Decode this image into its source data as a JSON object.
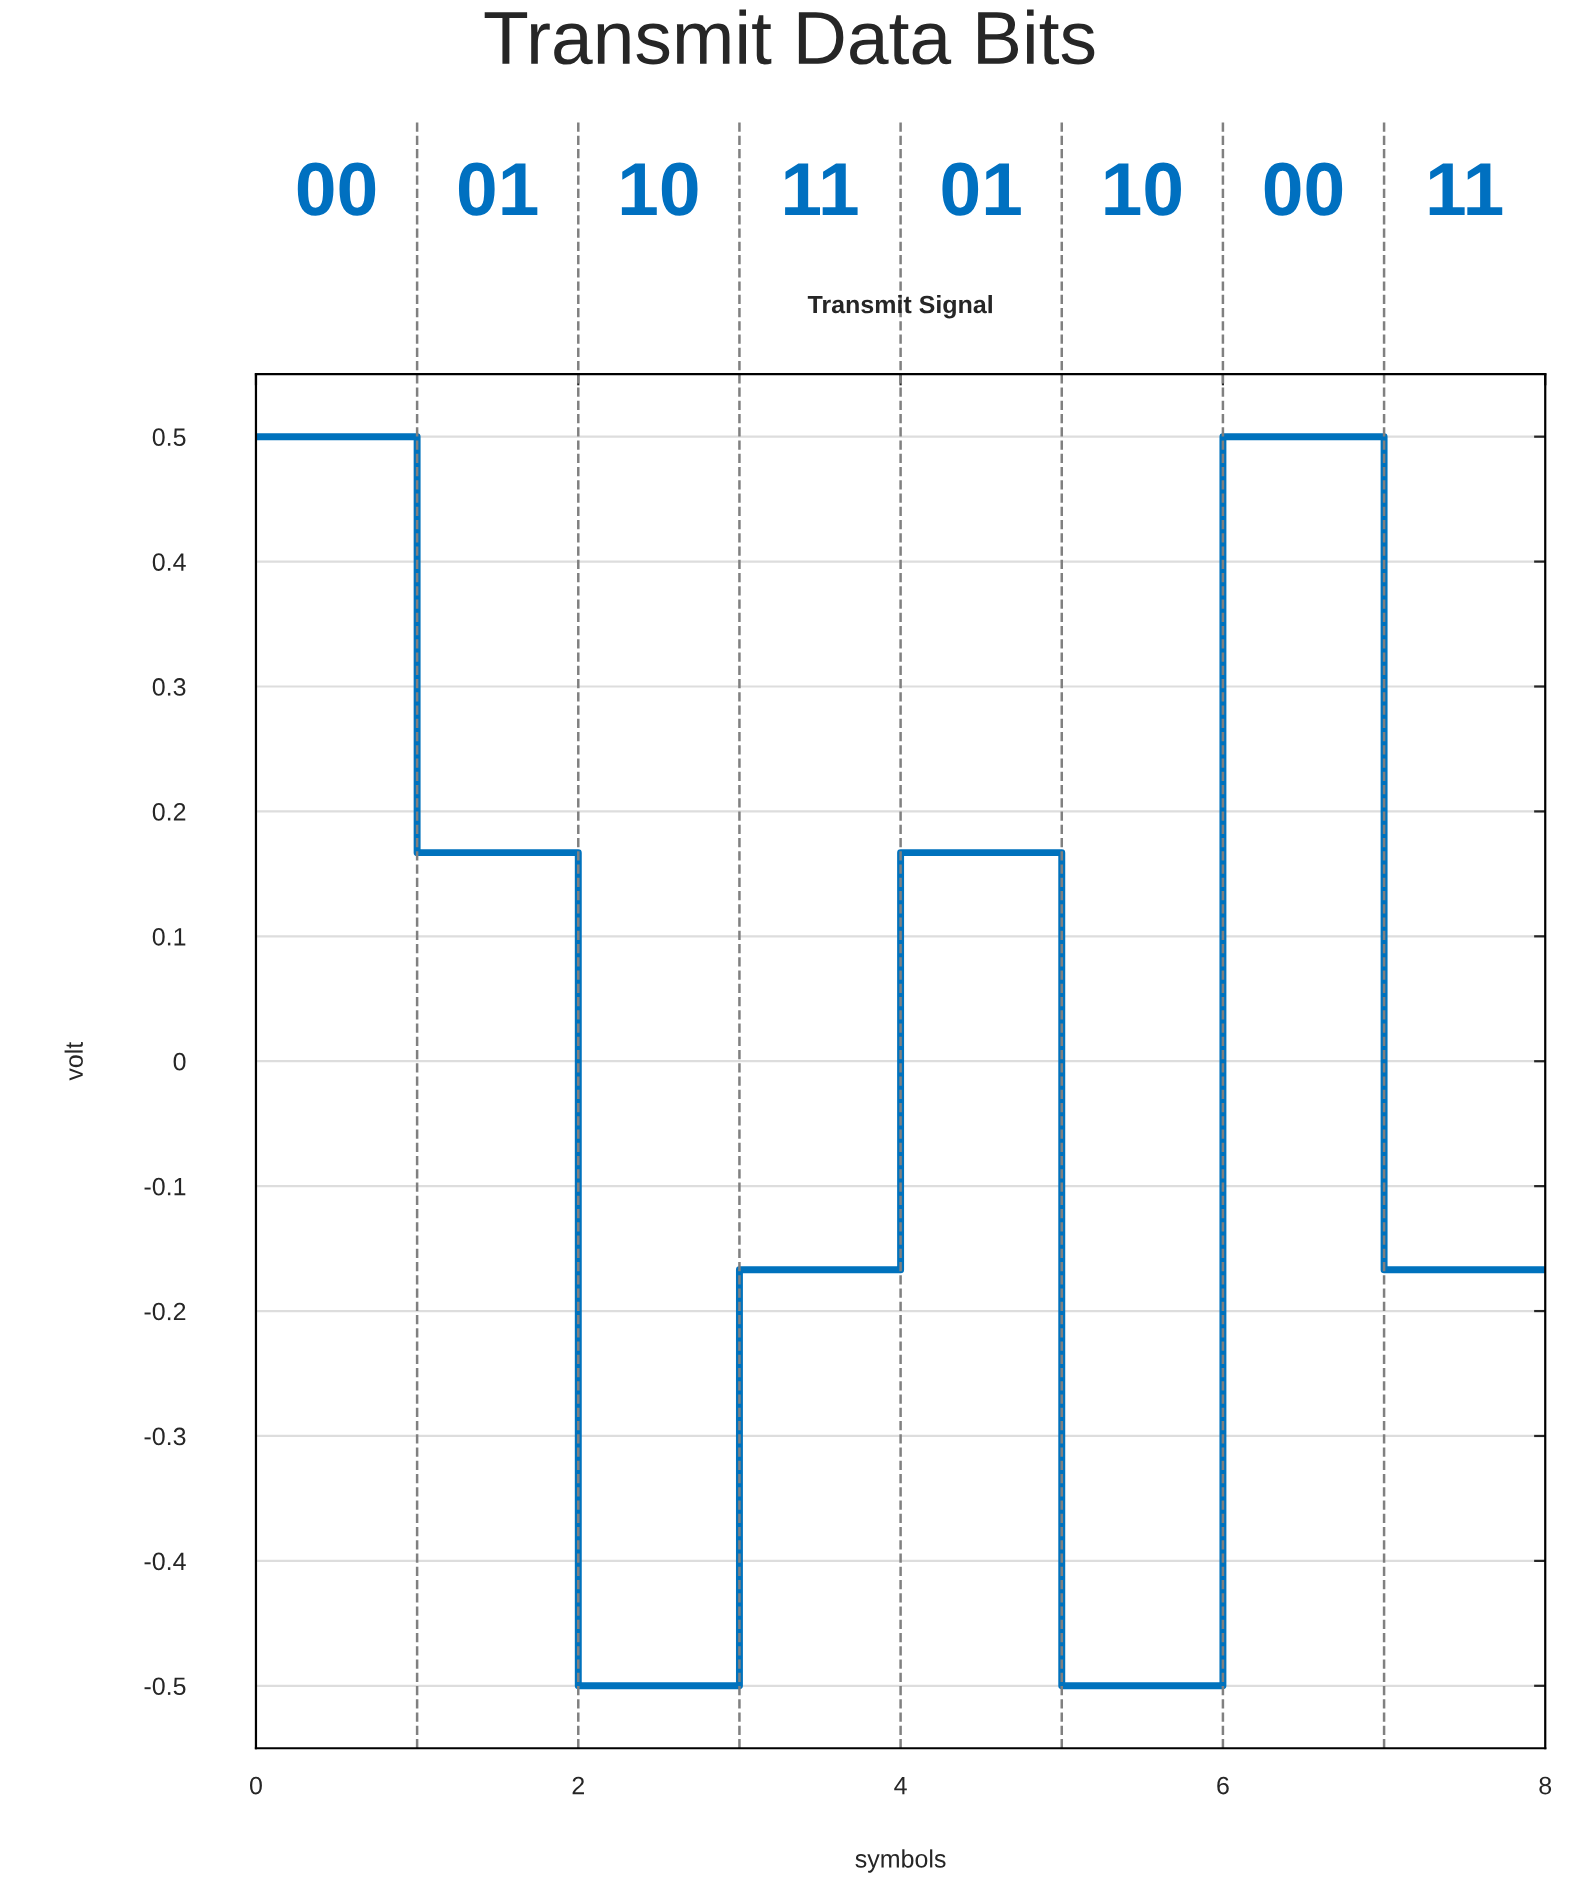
{
  "chart_data": {
    "type": "step",
    "title": "Transmit Data Bits",
    "subtitle": "Transmit Signal",
    "xlabel": "symbols",
    "ylabel": "volt",
    "x": [
      0,
      1,
      2,
      3,
      4,
      5,
      6,
      7,
      8
    ],
    "series": [
      {
        "color": "#0072bd",
        "values": [
          0.5,
          0.167,
          -0.5,
          -0.167,
          0.167,
          -0.5,
          0.5,
          -0.167,
          -0.167
        ]
      }
    ],
    "xlim": [
      0,
      8
    ],
    "xticks": [
      0,
      2,
      4,
      6,
      8
    ],
    "ylim": [
      -0.55,
      0.55
    ],
    "yticks": [
      -0.5,
      -0.4,
      -0.3,
      -0.2,
      -0.1,
      0,
      0.1,
      0.2,
      0.3,
      0.4,
      0.5
    ],
    "grid": "y",
    "line_style": "solid",
    "ref_lines": [
      {
        "axis": "x",
        "value": 1,
        "color": "#808080",
        "line_style": "dashed"
      },
      {
        "axis": "x",
        "value": 2,
        "color": "#808080",
        "line_style": "dashed"
      },
      {
        "axis": "x",
        "value": 3,
        "color": "#808080",
        "line_style": "dashed"
      },
      {
        "axis": "x",
        "value": 4,
        "color": "#808080",
        "line_style": "dashed"
      },
      {
        "axis": "x",
        "value": 5,
        "color": "#808080",
        "line_style": "dashed"
      },
      {
        "axis": "x",
        "value": 6,
        "color": "#808080",
        "line_style": "dashed"
      },
      {
        "axis": "x",
        "value": 7,
        "color": "#808080",
        "line_style": "dashed"
      }
    ],
    "annotations": [
      "00",
      "01",
      "10",
      "11",
      "01",
      "10",
      "00",
      "11"
    ]
  }
}
